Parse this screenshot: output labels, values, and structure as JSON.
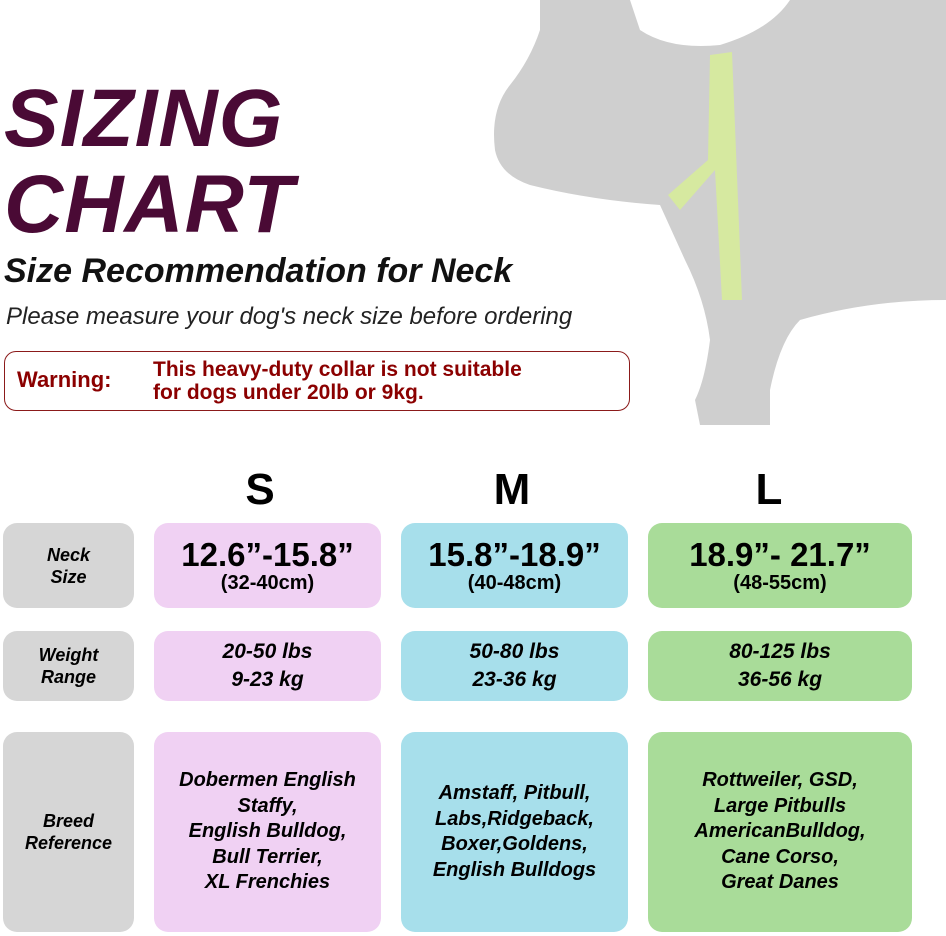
{
  "header": {
    "title_line1": "SIZING",
    "title_line2": "CHART",
    "subtitle": "Size Recommendation for Neck",
    "note": "Please measure your dog's neck size before ordering"
  },
  "warning": {
    "label": "Warning:",
    "line1": "This heavy-duty collar is not suitable",
    "line2": "for dogs under 20lb or 9kg."
  },
  "colors": {
    "title": "#4a0a35",
    "warning": "#8b0000",
    "small": "#f0d1f3",
    "medium": "#a7dfeb",
    "large": "#a9dc99",
    "label": "#d6d6d6"
  },
  "rows": {
    "neck": [
      "Neck",
      "Size"
    ],
    "weight": [
      "Weight",
      "Range"
    ],
    "breed": [
      "Breed",
      "Reference"
    ]
  },
  "sizes": [
    {
      "name": "S",
      "neck_in": "12.6”-15.8”",
      "neck_cm": "(32-40cm)",
      "lbs": "20-50 lbs",
      "kg": "9-23 kg",
      "breeds": [
        "Dobermen English",
        "Staffy,",
        "English Bulldog,",
        "Bull Terrier,",
        "XL Frenchies"
      ]
    },
    {
      "name": "M",
      "neck_in": "15.8”-18.9”",
      "neck_cm": "(40-48cm)",
      "lbs": "50-80 lbs",
      "kg": "23-36 kg",
      "breeds": [
        "Amstaff, Pitbull,",
        "Labs,Ridgeback,",
        "Boxer,Goldens,",
        "English Bulldogs"
      ]
    },
    {
      "name": "L",
      "neck_in": "18.9”- 21.7”",
      "neck_cm": "(48-55cm)",
      "lbs": "80-125 lbs",
      "kg": "36-56 kg",
      "breeds": [
        "Rottweiler, GSD,",
        "Large Pitbulls",
        "AmericanBulldog,",
        "Cane Corso,",
        "Great Danes"
      ]
    }
  ]
}
